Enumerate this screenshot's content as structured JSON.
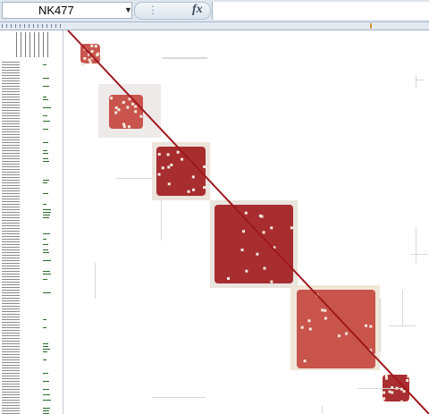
{
  "formula_bar": {
    "name_box_value": "NK477",
    "formula_value": "",
    "fx_label": "fx",
    "dropdown_icon": "chevron-down-icon",
    "separator_icon": "vertical-dots-icon"
  },
  "colors": {
    "accent_dark_red": "#a0181c",
    "mid_red": "#c3443c",
    "light_beige": "#f1e7d6",
    "gray_cells": "#d8d8d8",
    "row_marks_green": "#2a6b2a"
  },
  "heatmap_blocks": [
    {
      "name": "block-1",
      "level": "small"
    },
    {
      "name": "block-2",
      "level": "small"
    },
    {
      "name": "block-3",
      "level": "medium"
    },
    {
      "name": "block-4",
      "level": "large"
    },
    {
      "name": "block-5",
      "level": "large"
    },
    {
      "name": "block-6",
      "level": "small"
    }
  ]
}
